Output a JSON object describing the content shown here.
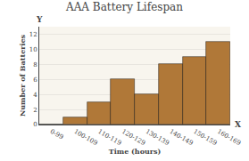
{
  "chart_data": {
    "type": "bar",
    "title": "AAA Battery Lifespan",
    "xlabel": "Time (hours)",
    "ylabel": "Number of Batteries",
    "categories": [
      "0-99",
      "100-109",
      "110-119",
      "120-129",
      "130-139",
      "140-149",
      "150-159",
      "160-169"
    ],
    "values": [
      0,
      1,
      3,
      6,
      4,
      8,
      9,
      11
    ],
    "color": "#b07838",
    "ylim": [
      0,
      13
    ],
    "yticks": [
      0,
      2,
      4,
      6,
      8,
      10,
      12
    ],
    "grid": true,
    "annotations": [
      "X",
      "Y"
    ]
  }
}
